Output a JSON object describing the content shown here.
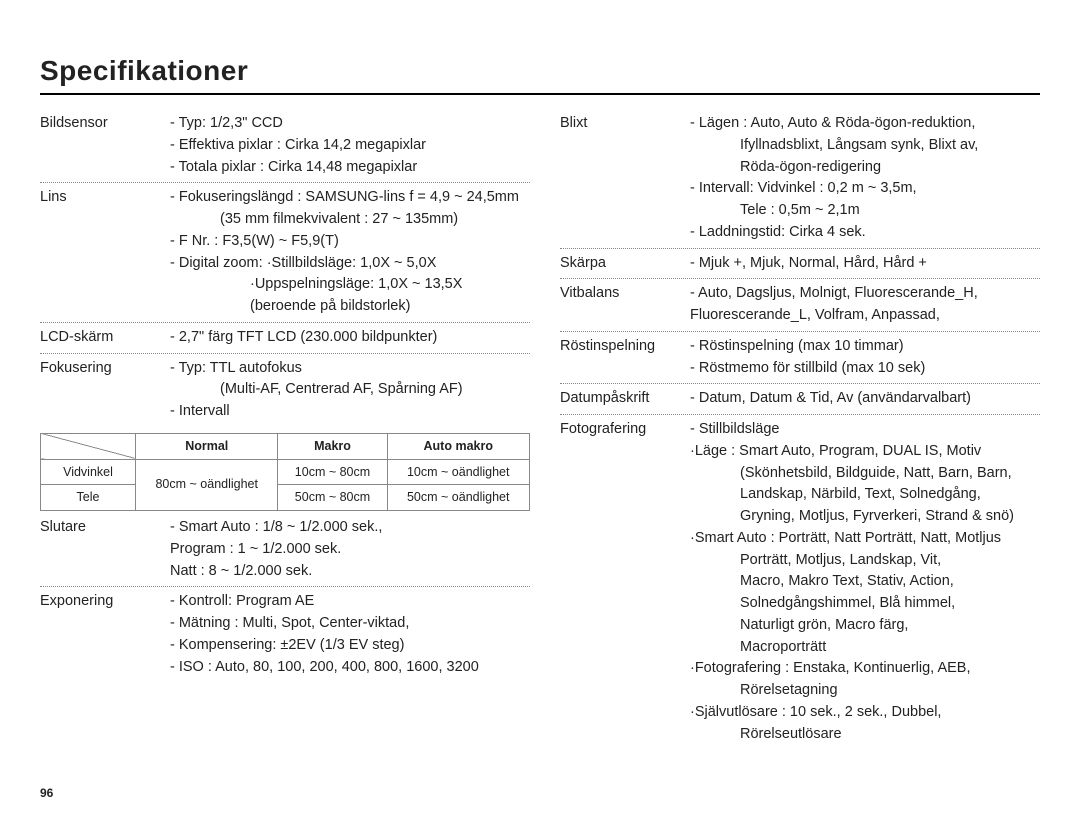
{
  "title": "Specifikationer",
  "page_number": "96",
  "left": {
    "bildsensor": {
      "label": "Bildsensor",
      "lines": [
        "- Typ: 1/2,3\" CCD",
        "- Effektiva pixlar : Cirka 14,2 megapixlar",
        "- Totala pixlar : Cirka 14,48 megapixlar"
      ]
    },
    "lins": {
      "label": "Lins",
      "lines": [
        "- Fokuseringslängd : SAMSUNG-lins f = 4,9 ~ 24,5mm",
        "  (35 mm filmekvivalent : 27 ~ 135mm)",
        "- F Nr. : F3,5(W) ~ F5,9(T)",
        "- Digital zoom: ·Stillbildsläge: 1,0X ~ 5,0X",
        "  ·Uppspelningsläge: 1,0X ~ 13,5X",
        "  (beroende på bildstorlek)"
      ]
    },
    "lcd": {
      "label": "LCD-skärm",
      "lines": [
        "- 2,7\" färg TFT LCD (230.000 bildpunkter)"
      ]
    },
    "fokusering": {
      "label": "Fokusering",
      "lines": [
        "- Typ: TTL autofokus",
        "  (Multi-AF, Centrerad AF, Spårning AF)",
        "- Intervall"
      ]
    },
    "focustable": {
      "headers": [
        "Normal",
        "Makro",
        "Auto makro"
      ],
      "rows": [
        {
          "label": "Vidvinkel",
          "cells": [
            "",
            "10cm ~ 80cm",
            "10cm ~ oändlighet"
          ]
        },
        {
          "label": "Tele",
          "cells": [
            "",
            "50cm ~ 80cm",
            "50cm ~ oändlighet"
          ]
        }
      ],
      "merged_normal": "80cm ~ oändlighet"
    },
    "slutare": {
      "label": "Slutare",
      "lines": [
        "- Smart Auto : 1/8 ~ 1/2.000 sek.,",
        "  Program : 1 ~ 1/2.000 sek.",
        "  Natt : 8 ~ 1/2.000 sek."
      ]
    },
    "exponering": {
      "label": "Exponering",
      "lines": [
        "- Kontroll: Program AE",
        "- Mätning : Multi, Spot, Center-viktad,",
        "- Kompensering: ±2EV (1/3 EV steg)",
        "- ISO : Auto, 80, 100, 200, 400, 800, 1600, 3200"
      ]
    }
  },
  "right": {
    "blixt": {
      "label": "Blixt",
      "lines": [
        "- Lägen : Auto, Auto & Röda-ögon-reduktion,",
        "  Ifyllnadsblixt, Långsam synk, Blixt av,",
        "  Röda-ögon-redigering",
        "- Intervall: Vidvinkel : 0,2 m ~ 3,5m,",
        "  Tele : 0,5m ~ 2,1m",
        "- Laddningstid: Cirka 4 sek."
      ]
    },
    "skarpa": {
      "label": "Skärpa",
      "lines": [
        "- Mjuk +, Mjuk, Normal, Hård, Hård +"
      ]
    },
    "vitbalans": {
      "label": "Vitbalans",
      "lines": [
        "- Auto, Dagsljus, Molnigt, Fluorescerande_H,",
        "  Fluorescerande_L, Volfram, Anpassad,"
      ]
    },
    "rostinspelning": {
      "label": "Röstinspelning",
      "lines": [
        "- Röstinspelning (max 10 timmar)",
        "- Röstmemo för stillbild (max 10 sek)"
      ]
    },
    "datum": {
      "label": "Datumpåskrift",
      "lines": [
        "- Datum, Datum & Tid, Av (användarvalbart)"
      ]
    },
    "fotografering": {
      "label": "Fotografering",
      "lines": [
        "- Stillbildsläge",
        "·Läge : Smart Auto, Program, DUAL IS, Motiv",
        "  (Skönhetsbild, Bildguide, Natt, Barn, Barn,",
        "  Landskap, Närbild, Text, Solnedgång,",
        "  Gryning, Motljus, Fyrverkeri, Strand & snö)",
        "·Smart Auto : Porträtt, Natt Porträtt, Natt, Motljus",
        "  Porträtt, Motljus, Landskap, Vit,",
        "  Macro, Makro Text, Stativ, Action,",
        "  Solnedgångshimmel, Blå himmel,",
        "  Naturligt grön, Macro färg,",
        "  Macroporträtt",
        "·Fotografering : Enstaka, Kontinuerlig, AEB,",
        "  Rörelsetagning",
        "·Självutlösare : 10 sek., 2 sek., Dubbel,",
        "  Rörelseutlösare"
      ]
    }
  }
}
